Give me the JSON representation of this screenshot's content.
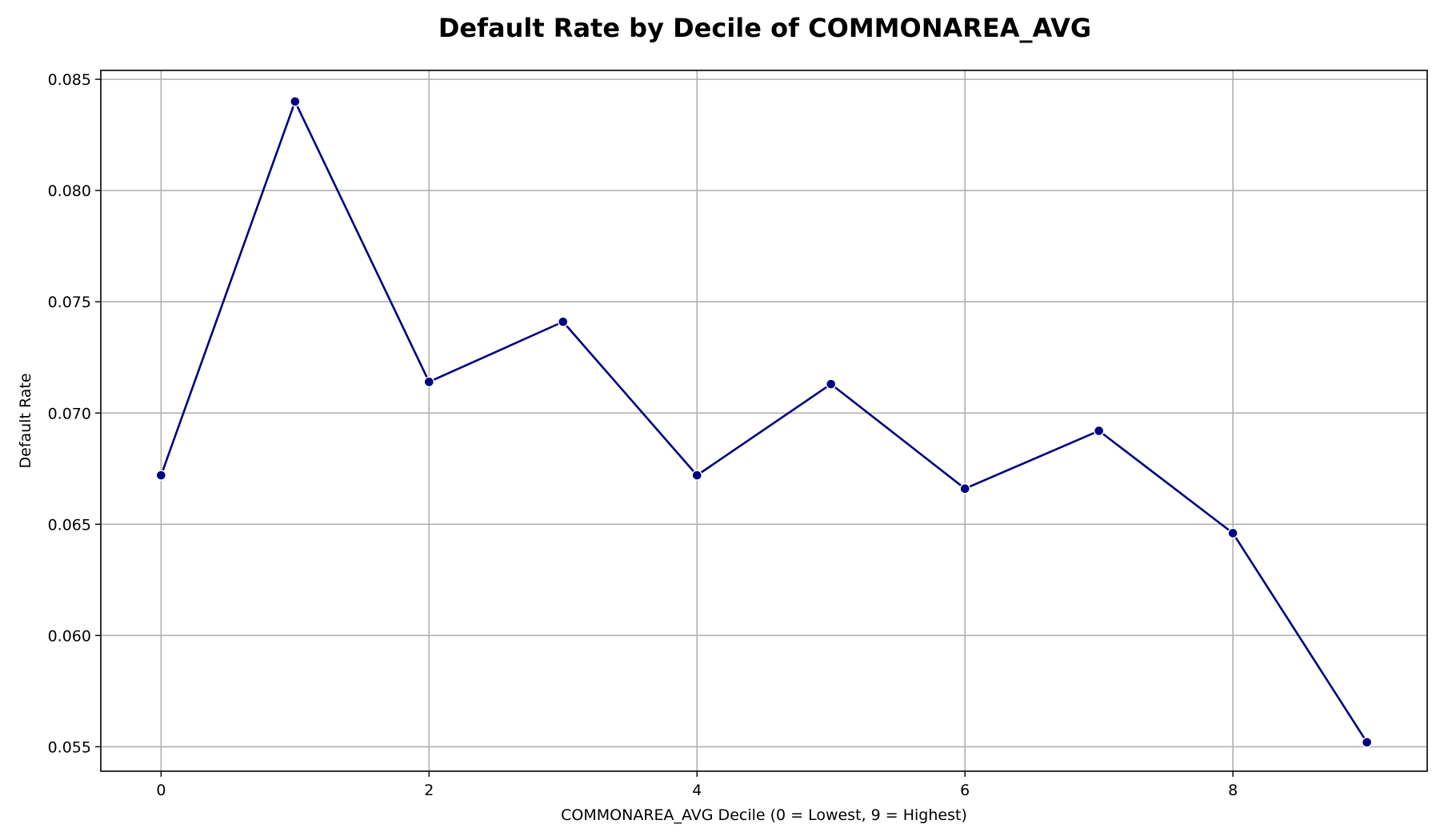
{
  "chart_data": {
    "type": "line",
    "title": "Default Rate by Decile of COMMONAREA_AVG",
    "xlabel": "COMMONAREA_AVG Decile (0 = Lowest, 9 = Highest)",
    "ylabel": "Default Rate",
    "x": [
      0,
      1,
      2,
      3,
      4,
      5,
      6,
      7,
      8,
      9
    ],
    "series": [
      {
        "values": [
          0.0672,
          0.084,
          0.0714,
          0.0741,
          0.0672,
          0.0713,
          0.0666,
          0.0692,
          0.0646,
          0.0552
        ],
        "color": "#000080"
      }
    ],
    "xlim": [
      -0.45,
      9.45
    ],
    "ylim": [
      0.0539,
      0.0854
    ],
    "xticks": [
      0,
      2,
      4,
      6,
      8
    ],
    "xtick_labels": [
      "0",
      "2",
      "4",
      "6",
      "8"
    ],
    "yticks": [
      0.055,
      0.06,
      0.065,
      0.07,
      0.075,
      0.08,
      0.085
    ],
    "ytick_labels": [
      "0.055",
      "0.060",
      "0.065",
      "0.070",
      "0.075",
      "0.080",
      "0.085"
    ],
    "grid": true,
    "markers": true
  }
}
